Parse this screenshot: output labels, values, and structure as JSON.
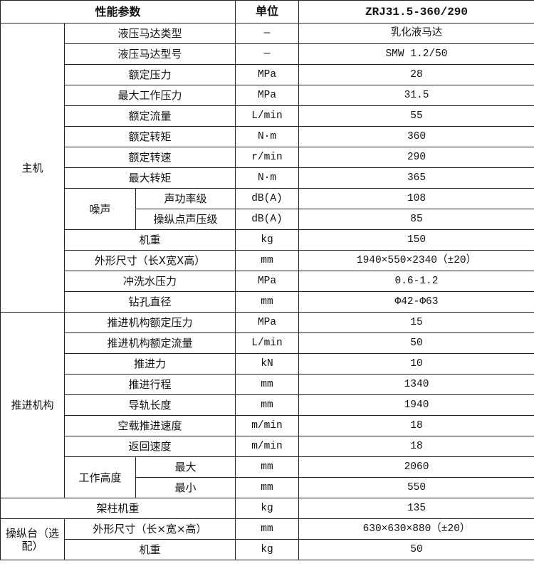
{
  "header": {
    "param": "性能参数",
    "unit": "单位",
    "model": "ZRJ31.5-360/290"
  },
  "groups": [
    {
      "name": "主机",
      "rows": [
        {
          "label": "液压马达类型",
          "unit": "—",
          "value": "乳化液马达"
        },
        {
          "label": "液压马达型号",
          "unit": "—",
          "value": "SMW 1.2/50"
        },
        {
          "label": "额定压力",
          "unit": "MPa",
          "value": "28"
        },
        {
          "label": "最大工作压力",
          "unit": "MPa",
          "value": "31.5"
        },
        {
          "label": "额定流量",
          "unit": "L/min",
          "value": "55"
        },
        {
          "label": "额定转矩",
          "unit": "N·m",
          "value": "360"
        },
        {
          "label": "额定转速",
          "unit": "r/min",
          "value": "290"
        },
        {
          "label": "最大转矩",
          "unit": "N·m",
          "value": "365"
        },
        {
          "sub": "噪声",
          "label": "声功率级",
          "unit": "dB(A)",
          "value": "108"
        },
        {
          "sub": "噪声",
          "label": "操纵点声压级",
          "unit": "dB(A)",
          "value": "85"
        },
        {
          "label": "机重",
          "unit": "kg",
          "value": "150"
        },
        {
          "label": "外形尺寸（长X宽X高）",
          "unit": "mm",
          "value": "1940×550×2340（±20）"
        },
        {
          "label": "冲洗水压力",
          "unit": "MPa",
          "value": "0.6-1.2"
        },
        {
          "label": "钻孔直径",
          "unit": "mm",
          "value": "Φ42-Φ63"
        }
      ]
    },
    {
      "name": "推进机构",
      "rows": [
        {
          "label": "推进机构额定压力",
          "unit": "MPa",
          "value": "15"
        },
        {
          "label": "推进机构额定流量",
          "unit": "L/min",
          "value": "50"
        },
        {
          "label": "推进力",
          "unit": "kN",
          "value": "10"
        },
        {
          "label": "推进行程",
          "unit": "mm",
          "value": "1340"
        },
        {
          "label": "导轨长度",
          "unit": "mm",
          "value": "1940"
        },
        {
          "label": "空载推进速度",
          "unit": "m/min",
          "value": "18"
        },
        {
          "label": "返回速度",
          "unit": "m/min",
          "value": "18"
        },
        {
          "sub": "工作高度",
          "label": "最大",
          "unit": "mm",
          "value": "2060"
        },
        {
          "sub": "工作高度",
          "label": "最小",
          "unit": "mm",
          "value": "550"
        }
      ]
    },
    {
      "name": "",
      "rows": [
        {
          "label": "架柱机重",
          "unit": "kg",
          "value": "135"
        }
      ]
    },
    {
      "name": "操纵台（选配）",
      "rows": [
        {
          "label": "外形尺寸（长×宽×高）",
          "unit": "mm",
          "value": "630×630×880（±20）"
        },
        {
          "label": "机重",
          "unit": "kg",
          "value": "50"
        }
      ]
    }
  ]
}
